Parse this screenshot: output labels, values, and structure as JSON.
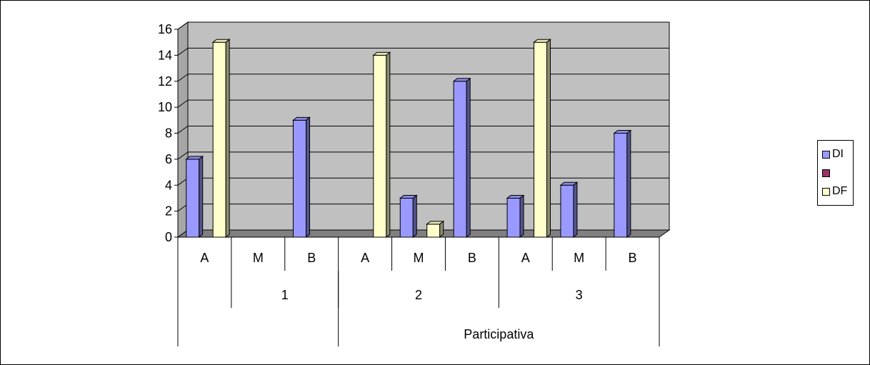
{
  "chart_data": {
    "type": "bar",
    "title": "",
    "xlabel": "",
    "ylabel": "",
    "ylim": [
      0,
      16
    ],
    "yticks": [
      0,
      2,
      4,
      6,
      8,
      10,
      12,
      14,
      16
    ],
    "grid": true,
    "legend_position": "right",
    "categories": [
      "A",
      "M",
      "B",
      "A",
      "M",
      "B",
      "A",
      "M",
      "B"
    ],
    "groups": [
      {
        "label": "",
        "span": 1
      },
      {
        "label": "1",
        "span": 2
      },
      {
        "label": "2",
        "span": 3
      },
      {
        "label": "3",
        "span": 3
      }
    ],
    "supergroups": [
      {
        "label": "",
        "span": 3
      },
      {
        "label": "Participativa",
        "span": 6
      }
    ],
    "series": [
      {
        "name": "DI",
        "color": "#9999ff",
        "values": [
          6,
          0,
          9,
          0,
          3,
          12,
          3,
          4,
          8
        ]
      },
      {
        "name": "",
        "color": "#993366",
        "values": [
          0,
          0,
          0,
          0,
          0,
          0,
          0,
          0,
          0
        ]
      },
      {
        "name": "DF",
        "color": "#ffffcc",
        "values": [
          15,
          0,
          0,
          14,
          1,
          0,
          15,
          0,
          0
        ]
      }
    ]
  }
}
